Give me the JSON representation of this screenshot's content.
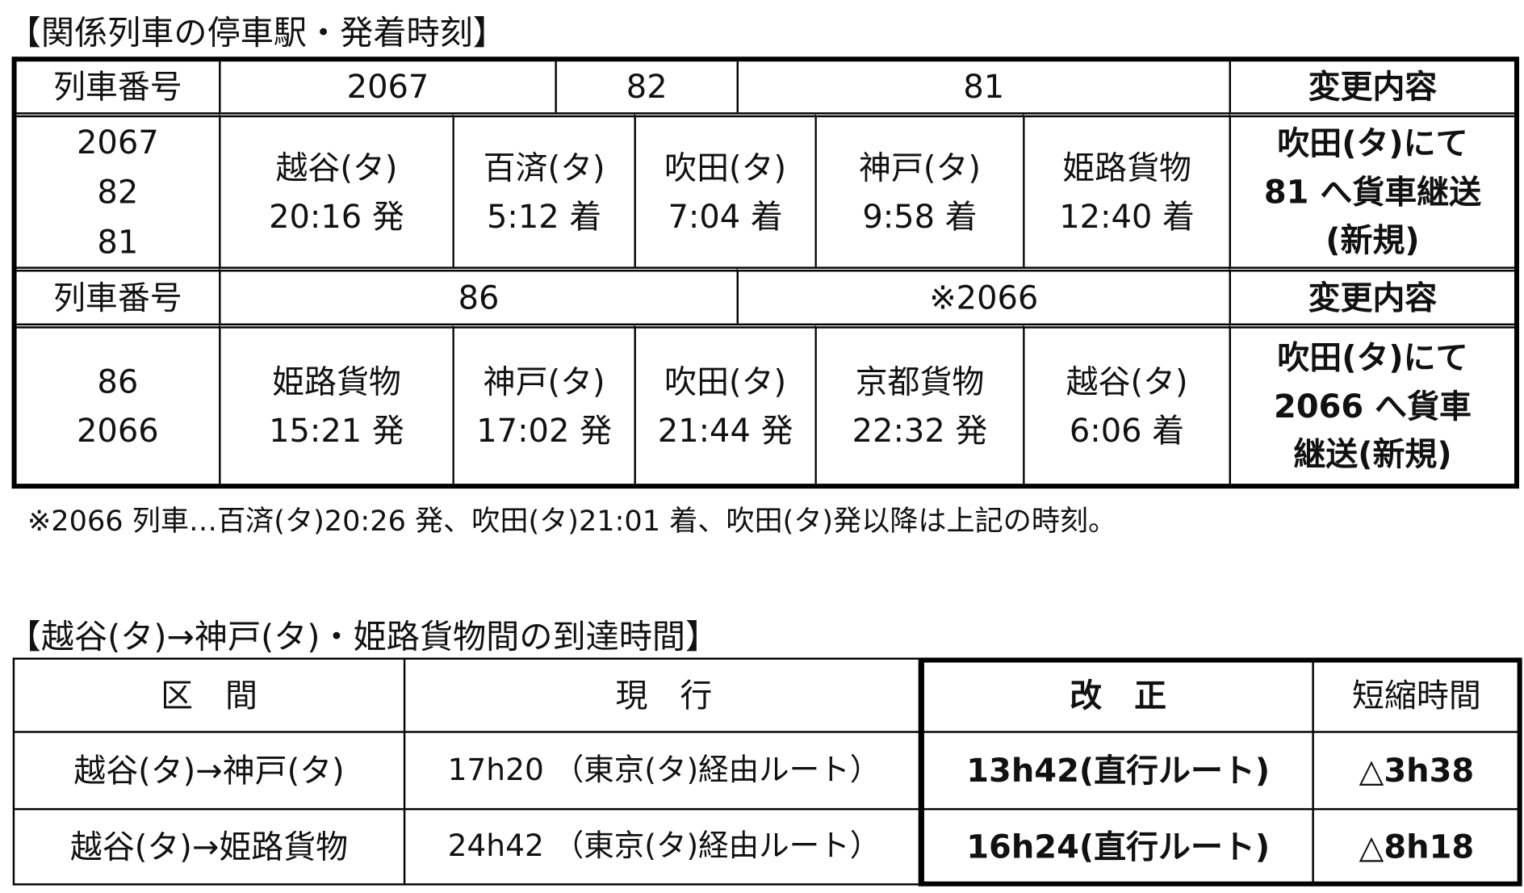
{
  "section1": {
    "title": "【関係列車の停車駅・発着時刻】",
    "header1": {
      "label": "列車番号",
      "trains": [
        "2067",
        "82",
        "81"
      ],
      "change": "変更内容"
    },
    "row1": {
      "trains": [
        "2067",
        "82",
        "81"
      ],
      "stops": [
        [
          "越谷(タ)",
          "20:16 発"
        ],
        [
          "百済(タ)",
          "5:12 着"
        ],
        [
          "吹田(タ)",
          "7:04 着"
        ],
        [
          "神戸(タ)",
          "9:58 着"
        ],
        [
          "姫路貨物",
          "12:40 着"
        ]
      ],
      "change": [
        "吹田(タ)にて",
        "81 へ貨車継送",
        "(新規)"
      ]
    },
    "header2": {
      "label": "列車番号",
      "trains": [
        "86",
        "※2066"
      ],
      "change": "変更内容"
    },
    "row2": {
      "trains": [
        "86",
        "2066"
      ],
      "stops": [
        [
          "姫路貨物",
          "15:21 発"
        ],
        [
          "神戸(タ)",
          "17:02 発"
        ],
        [
          "吹田(タ)",
          "21:44 発"
        ],
        [
          "京都貨物",
          "22:32 発"
        ],
        [
          "越谷(タ)",
          "6:06 着"
        ]
      ],
      "change": [
        "吹田(タ)にて",
        "2066 へ貨車",
        "継送(新規)"
      ]
    },
    "note": "※2066 列車…百済(タ)20:26 発、吹田(タ)21:01 着、吹田(タ)発以降は上記の時刻。"
  },
  "section2": {
    "title": "【越谷(タ)→神戸(タ)・姫路貨物間の到達時間】",
    "headers": [
      "区　間",
      "現　行",
      "改　正",
      "短縮時間"
    ],
    "rows": [
      [
        "越谷(タ)→神戸(タ)",
        "17h20 （東京(タ)経由ルート）",
        "13h42(直行ルート)",
        "△3h38"
      ],
      [
        "越谷(タ)→姫路貨物",
        "24h42 （東京(タ)経由ルート）",
        "16h24(直行ルート)",
        "△8h18"
      ]
    ]
  }
}
